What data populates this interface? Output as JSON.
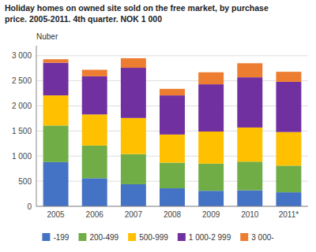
{
  "chart_data": {
    "type": "bar",
    "stacked": true,
    "title": "Holiday homes on owned site sold on the free market, by purchase",
    "subtitle": "price. 2005-2011. 4th quarter. NOK 1 000",
    "y_label": "Nuber",
    "categories": [
      "2005",
      "2006",
      "2007",
      "2008",
      "2009",
      "2010",
      "2011*"
    ],
    "series": [
      {
        "name": "-199",
        "color": "#4472c4",
        "values": [
          880,
          560,
          440,
          360,
          310,
          320,
          280
        ]
      },
      {
        "name": "200-499",
        "color": "#70ad47",
        "values": [
          730,
          650,
          600,
          510,
          540,
          570,
          530
        ]
      },
      {
        "name": "500-999",
        "color": "#ffc000",
        "values": [
          600,
          620,
          720,
          560,
          640,
          680,
          670
        ]
      },
      {
        "name": "1 000-2 999",
        "color": "#7030a0",
        "values": [
          650,
          760,
          1000,
          780,
          940,
          1000,
          1000
        ]
      },
      {
        "name": "3 000-",
        "color": "#ed7d31",
        "values": [
          70,
          130,
          190,
          130,
          240,
          280,
          200
        ]
      }
    ],
    "ylim": [
      0,
      3200
    ],
    "yticks": [
      0,
      500,
      {
        "value": 1000,
        "label": "1 000"
      },
      {
        "value": 1500,
        "label": "1 500"
      },
      {
        "value": 2000,
        "label": "2 000"
      },
      {
        "value": 2500,
        "label": "2 500"
      },
      {
        "value": 3000,
        "label": "3 000"
      }
    ],
    "grid": true,
    "legend": "bottom"
  }
}
